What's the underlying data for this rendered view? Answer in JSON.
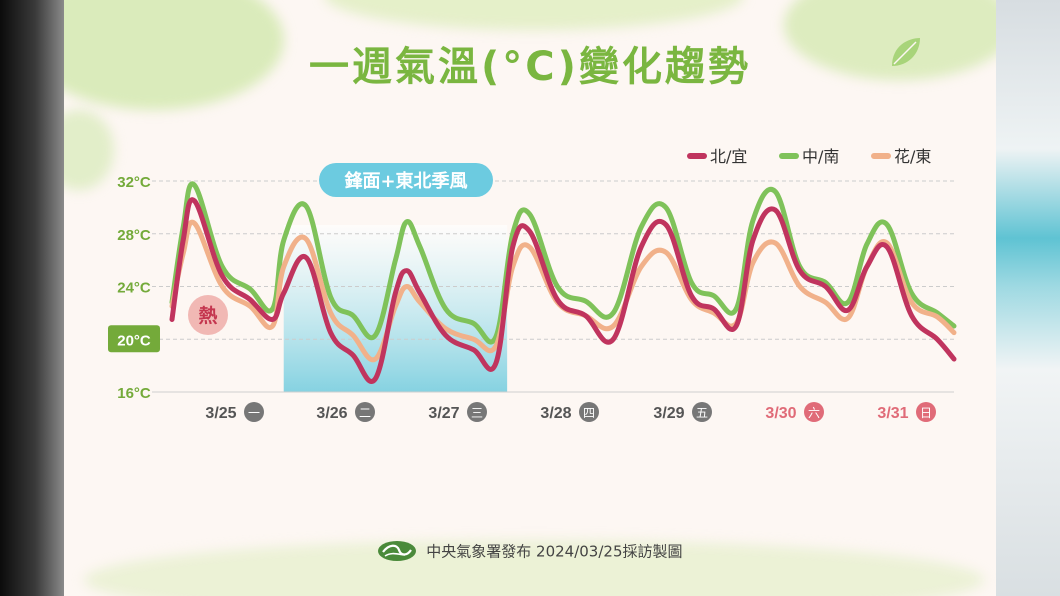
{
  "title": "一週氣溫(°C)變化趨勢",
  "footer": "中央氣象署發布 2024/03/25採訪製圖",
  "annotation_front": "鋒面+東北季風",
  "annotation_hot": "熱",
  "colors": {
    "north": "#c0345e",
    "central": "#7fc25a",
    "east": "#f1b18a",
    "title": "#7ab640",
    "axis_label": "#74aa3a",
    "highlight_label_bg": "#74aa3a",
    "weekend": "#e06b78",
    "band_top": "#ffffff",
    "band_bottom": "#7fd0e0",
    "front_badge": "#6ccbe0"
  },
  "chart_data": {
    "type": "line",
    "title": "一週氣溫(°C)變化趨勢",
    "xlabel": "",
    "ylabel": "",
    "ylim": [
      16,
      32
    ],
    "yticks": [
      "32°C",
      "28°C",
      "24°C",
      "20°C",
      "16°C"
    ],
    "ytick_values": [
      32,
      28,
      24,
      20,
      16
    ],
    "highlight_ytick": "20°C",
    "grid": "horizontal dashed",
    "legend_position": "top-right",
    "categories": [
      {
        "date": "3/25",
        "weekday": "一",
        "weekend": false
      },
      {
        "date": "3/26",
        "weekday": "二",
        "weekend": false
      },
      {
        "date": "3/27",
        "weekday": "三",
        "weekend": false
      },
      {
        "date": "3/28",
        "weekday": "四",
        "weekend": false
      },
      {
        "date": "3/29",
        "weekday": "五",
        "weekend": false
      },
      {
        "date": "3/30",
        "weekday": "六",
        "weekend": true
      },
      {
        "date": "3/31",
        "weekday": "日",
        "weekend": true
      }
    ],
    "x_range": [
      0,
      7
    ],
    "series": [
      {
        "name": "北/宜",
        "key": "north",
        "x": [
          0,
          0.1,
          0.2,
          0.45,
          0.7,
          0.9,
          1.0,
          1.2,
          1.42,
          1.62,
          1.82,
          2.0,
          2.1,
          2.22,
          2.45,
          2.7,
          2.9,
          3.05,
          3.2,
          3.45,
          3.7,
          3.95,
          4.2,
          4.42,
          4.65,
          4.85,
          5.05,
          5.2,
          5.4,
          5.62,
          5.85,
          6.05,
          6.22,
          6.4,
          6.62,
          6.85,
          7.0
        ],
        "y": [
          21.5,
          27.5,
          30.5,
          24.8,
          23.0,
          21.5,
          23.5,
          26.2,
          20.5,
          18.8,
          17.0,
          23.5,
          25.2,
          23.5,
          20.3,
          19.2,
          18.2,
          27.0,
          28.2,
          23.0,
          21.8,
          20.0,
          27.0,
          28.7,
          23.3,
          22.3,
          21.0,
          27.5,
          29.8,
          25.2,
          24.0,
          22.2,
          25.5,
          27.0,
          21.8,
          20.0,
          18.5
        ]
      },
      {
        "name": "中/南",
        "key": "central",
        "x": [
          0,
          0.1,
          0.2,
          0.45,
          0.7,
          0.9,
          1.0,
          1.2,
          1.42,
          1.62,
          1.82,
          2.0,
          2.1,
          2.22,
          2.45,
          2.7,
          2.9,
          3.05,
          3.2,
          3.45,
          3.7,
          3.95,
          4.2,
          4.42,
          4.65,
          4.85,
          5.05,
          5.2,
          5.4,
          5.62,
          5.85,
          6.05,
          6.22,
          6.4,
          6.62,
          6.85,
          7.0
        ],
        "y": [
          22.8,
          28.5,
          31.7,
          25.5,
          23.8,
          22.3,
          27.5,
          30.1,
          23.2,
          21.8,
          20.3,
          26.0,
          28.9,
          27.0,
          22.3,
          21.2,
          20.2,
          28.0,
          29.5,
          24.0,
          22.9,
          22.0,
          28.5,
          30.0,
          24.3,
          23.3,
          22.3,
          29.0,
          31.2,
          25.5,
          24.3,
          22.8,
          27.2,
          28.7,
          23.5,
          22.0,
          21.0
        ]
      },
      {
        "name": "花/東",
        "key": "east",
        "x": [
          0,
          0.1,
          0.2,
          0.45,
          0.7,
          0.9,
          1.0,
          1.2,
          1.42,
          1.62,
          1.82,
          2.0,
          2.1,
          2.22,
          2.45,
          2.7,
          2.9,
          3.05,
          3.2,
          3.45,
          3.7,
          3.95,
          4.2,
          4.42,
          4.65,
          4.85,
          5.05,
          5.2,
          5.4,
          5.62,
          5.85,
          6.05,
          6.22,
          6.4,
          6.62,
          6.85,
          7.0
        ],
        "y": [
          22.5,
          26.5,
          28.8,
          24.0,
          22.5,
          21.0,
          25.5,
          27.6,
          22.0,
          20.3,
          18.5,
          22.5,
          24.0,
          22.8,
          20.8,
          20.0,
          19.5,
          25.5,
          27.0,
          22.8,
          21.8,
          21.0,
          25.5,
          26.6,
          23.0,
          22.0,
          21.2,
          25.8,
          27.3,
          24.0,
          22.8,
          21.6,
          25.5,
          27.3,
          22.8,
          21.7,
          20.5
        ]
      }
    ],
    "annotations": [
      {
        "text": "鋒面+東北季風",
        "x_from": 1.0,
        "x_to": 3.0,
        "type": "shaded_band"
      },
      {
        "text": "熱",
        "type": "badge"
      }
    ]
  }
}
